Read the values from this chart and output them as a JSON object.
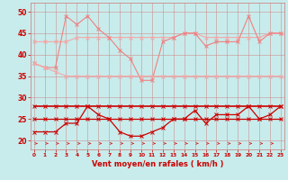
{
  "background_color": "#c8ecec",
  "grid_color": "#d08080",
  "xlabel": "Vent moyen/en rafales ( km/h )",
  "ylim": [
    18,
    52
  ],
  "yticks": [
    20,
    25,
    30,
    35,
    40,
    45,
    50
  ],
  "xlim": [
    -0.3,
    23.3
  ],
  "line_salmon_flat": [
    43,
    43,
    43,
    43,
    44,
    44,
    44,
    44,
    44,
    44,
    44,
    44,
    44,
    44,
    45,
    45,
    44,
    44,
    44,
    44,
    44,
    44,
    45,
    45
  ],
  "line_salmon_vary": [
    38,
    37,
    37,
    49,
    47,
    49,
    46,
    44,
    41,
    39,
    34,
    34,
    43,
    44,
    45,
    45,
    42,
    43,
    43,
    43,
    49,
    43,
    45,
    45
  ],
  "line_salmon_low": [
    38,
    37,
    36,
    35,
    35,
    35,
    35,
    35,
    35,
    35,
    35,
    35,
    35,
    35,
    35,
    35,
    35,
    35,
    35,
    35,
    35,
    35,
    35,
    35
  ],
  "line_red_flat28": [
    28,
    28,
    28,
    28,
    28,
    28,
    28,
    28,
    28,
    28,
    28,
    28,
    28,
    28,
    28,
    28,
    28,
    28,
    28,
    28,
    28,
    28,
    28,
    28
  ],
  "line_red_flat25": [
    25,
    25,
    25,
    25,
    25,
    25,
    25,
    25,
    25,
    25,
    25,
    25,
    25,
    25,
    25,
    25,
    25,
    25,
    25,
    25,
    25,
    25,
    25,
    25
  ],
  "line_red_vary": [
    22,
    22,
    22,
    24,
    24,
    28,
    26,
    25,
    22,
    21,
    21,
    22,
    23,
    25,
    25,
    27,
    24,
    26,
    26,
    26,
    28,
    25,
    26,
    28
  ],
  "salmon_color_light": "#f4a8a8",
  "salmon_color_mid": "#f08080",
  "salmon_color_dark": "#e87070",
  "red_color_dark": "#cc0000",
  "red_color_med": "#dd1111",
  "x_labels": [
    "0",
    "1",
    "2",
    "3",
    "4",
    "5",
    "6",
    "7",
    "8",
    "9",
    "10",
    "11",
    "12",
    "13",
    "14",
    "15",
    "16",
    "17",
    "18",
    "19",
    "20",
    "21",
    "22",
    "23"
  ]
}
